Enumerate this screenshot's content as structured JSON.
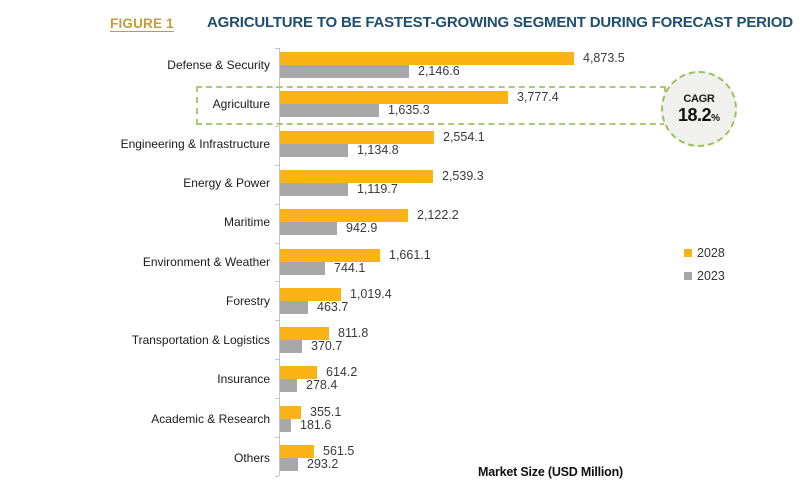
{
  "figure_label": "FIGURE 1",
  "title": "AGRICULTURE TO BE FASTEST-GROWING SEGMENT DURING FORECAST PERIOD",
  "chart_data": {
    "type": "bar",
    "orientation": "horizontal",
    "title": "AGRICULTURE TO BE FASTEST-GROWING SEGMENT DURING FORECAST PERIOD",
    "xlabel": "Market Size (USD Million)",
    "ylabel": "",
    "xlim": [
      0,
      4873.5
    ],
    "grid": false,
    "legend_position": "right",
    "categories": [
      "Defense & Security",
      "Agriculture",
      "Engineering & Infrastructure",
      "Energy & Power",
      "Maritime",
      "Environment & Weather",
      "Forestry",
      "Transportation & Logistics",
      "Insurance",
      "Academic & Research",
      "Others"
    ],
    "series": [
      {
        "name": "2028",
        "color": "#fbb316",
        "values": [
          4873.5,
          3777.4,
          2554.1,
          2539.3,
          2122.2,
          1661.1,
          1019.4,
          811.8,
          614.2,
          355.1,
          561.5
        ]
      },
      {
        "name": "2023",
        "color": "#a8a8a8",
        "values": [
          2146.6,
          1635.3,
          1134.8,
          1119.7,
          942.9,
          744.1,
          463.7,
          370.7,
          278.4,
          181.6,
          293.2
        ]
      }
    ],
    "highlight": {
      "category": "Agriculture",
      "callout_label": "CAGR",
      "callout_value": "18.2",
      "callout_unit": "%"
    }
  },
  "colors": {
    "accent_orange": "#fbb316",
    "neutral_gray": "#a8a8a8",
    "title_blue": "#1f4e6e",
    "figure_gold": "#c49b3c",
    "highlight_green": "#9cc25b",
    "axis_gray": "#c6c6c6"
  }
}
